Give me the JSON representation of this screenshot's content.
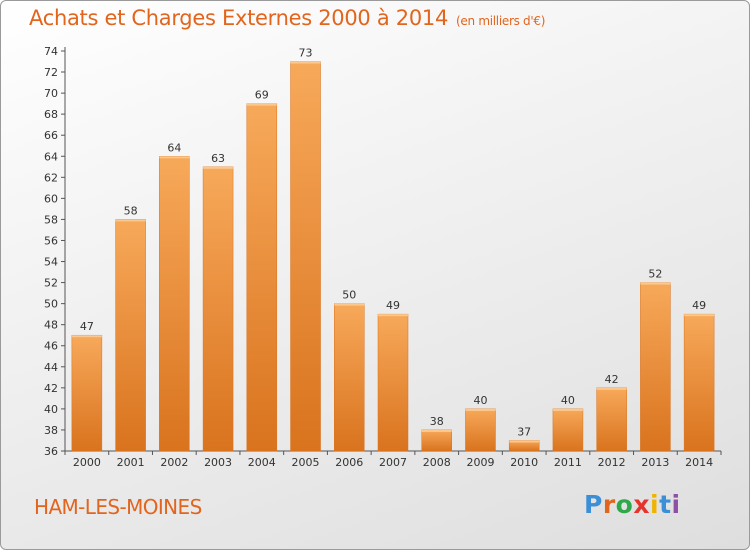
{
  "header": {
    "title": "Achats et Charges Externes 2000 à 2014",
    "unit": "(en milliers d'€)"
  },
  "footer": {
    "town": "HAM-LES-MOINES",
    "logo_text": "Proxiti"
  },
  "colors": {
    "title": "#e2651e",
    "bar_light": "#f7a95a",
    "bar_dark": "#d9731e",
    "logo": [
      "#3a8fd6",
      "#e2651e",
      "#2ea84a",
      "#e7342a",
      "#f0b400",
      "#3a8fd6",
      "#8f4fa8"
    ]
  },
  "chart_data": {
    "type": "bar",
    "title": "Achats et Charges Externes 2000 à 2014",
    "subtitle": "(en milliers d'€)",
    "categories": [
      "2000",
      "2001",
      "2002",
      "2003",
      "2004",
      "2005",
      "2006",
      "2007",
      "2008",
      "2009",
      "2010",
      "2011",
      "2012",
      "2013",
      "2014"
    ],
    "values": [
      47,
      58,
      64,
      63,
      69,
      73,
      50,
      49,
      38,
      40,
      37,
      40,
      42,
      52,
      49
    ],
    "ylim": [
      36,
      74
    ],
    "yticks": [
      36,
      38,
      40,
      42,
      44,
      46,
      48,
      50,
      52,
      54,
      56,
      58,
      60,
      62,
      64,
      66,
      68,
      70,
      72,
      74
    ],
    "grid": false,
    "legend": "none"
  }
}
